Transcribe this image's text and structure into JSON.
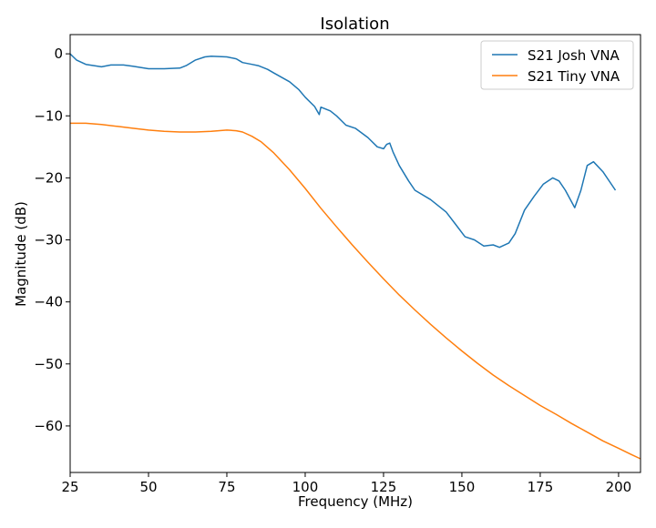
{
  "chart_data": {
    "type": "line",
    "title": "Isolation",
    "xlabel": "Frequency (MHz)",
    "ylabel": "Magnitude (dB)",
    "xlim": [
      25,
      207
    ],
    "ylim": [
      -67.5,
      3.1
    ],
    "xticks": [
      25,
      50,
      75,
      100,
      125,
      150,
      175,
      200
    ],
    "yticks": [
      0,
      -10,
      -20,
      -30,
      -40,
      -50,
      -60
    ],
    "xtick_labels": [
      "25",
      "50",
      "75",
      "100",
      "125",
      "150",
      "175",
      "200"
    ],
    "ytick_labels": [
      "0",
      "−10",
      "−20",
      "−30",
      "−40",
      "−50",
      "−60"
    ],
    "grid": false,
    "legend": {
      "placement": "top-right"
    },
    "series": [
      {
        "name": "S21 Josh VNA",
        "color": "#1f77b4",
        "points": [
          [
            25,
            0
          ],
          [
            27,
            -1
          ],
          [
            30,
            -1.7
          ],
          [
            35,
            -2.1
          ],
          [
            38,
            -1.8
          ],
          [
            42,
            -1.8
          ],
          [
            45,
            -2
          ],
          [
            50,
            -2.4
          ],
          [
            55,
            -2.4
          ],
          [
            60,
            -2.3
          ],
          [
            62,
            -1.9
          ],
          [
            65,
            -1
          ],
          [
            68,
            -0.5
          ],
          [
            70,
            -0.4
          ],
          [
            75,
            -0.5
          ],
          [
            78,
            -0.8
          ],
          [
            80,
            -1.4
          ],
          [
            83,
            -1.7
          ],
          [
            85,
            -1.9
          ],
          [
            88,
            -2.5
          ],
          [
            90,
            -3.1
          ],
          [
            95,
            -4.5
          ],
          [
            98,
            -5.8
          ],
          [
            100,
            -7
          ],
          [
            103,
            -8.5
          ],
          [
            104.5,
            -9.8
          ],
          [
            105,
            -8.6
          ],
          [
            108,
            -9.2
          ],
          [
            110,
            -10
          ],
          [
            113,
            -11.5
          ],
          [
            116,
            -12
          ],
          [
            120,
            -13.5
          ],
          [
            123,
            -15
          ],
          [
            125,
            -15.3
          ],
          [
            126,
            -14.6
          ],
          [
            127,
            -14.4
          ],
          [
            128,
            -15.8
          ],
          [
            130,
            -18
          ],
          [
            133,
            -20.5
          ],
          [
            135,
            -22
          ],
          [
            140,
            -23.5
          ],
          [
            145,
            -25.5
          ],
          [
            148,
            -27.5
          ],
          [
            151,
            -29.5
          ],
          [
            154,
            -30
          ],
          [
            157,
            -31
          ],
          [
            160,
            -30.8
          ],
          [
            162,
            -31.2
          ],
          [
            165,
            -30.5
          ],
          [
            167,
            -29
          ],
          [
            170,
            -25.2
          ],
          [
            173,
            -23
          ],
          [
            176,
            -21
          ],
          [
            179,
            -20
          ],
          [
            181,
            -20.5
          ],
          [
            183,
            -22
          ],
          [
            186,
            -24.8
          ],
          [
            188,
            -22
          ],
          [
            190,
            -18
          ],
          [
            192,
            -17.4
          ],
          [
            195,
            -19
          ],
          [
            199,
            -22
          ]
        ]
      },
      {
        "name": "S21 Tiny VNA",
        "color": "#ff7f0e",
        "points": [
          [
            25,
            -11.2
          ],
          [
            30,
            -11.2
          ],
          [
            35,
            -11.4
          ],
          [
            40,
            -11.7
          ],
          [
            45,
            -12
          ],
          [
            50,
            -12.3
          ],
          [
            55,
            -12.5
          ],
          [
            60,
            -12.6
          ],
          [
            65,
            -12.6
          ],
          [
            70,
            -12.5
          ],
          [
            75,
            -12.3
          ],
          [
            78,
            -12.4
          ],
          [
            80,
            -12.6
          ],
          [
            83,
            -13.3
          ],
          [
            86,
            -14.2
          ],
          [
            90,
            -16
          ],
          [
            95,
            -18.7
          ],
          [
            100,
            -21.7
          ],
          [
            105,
            -24.9
          ],
          [
            110,
            -27.9
          ],
          [
            115,
            -30.8
          ],
          [
            120,
            -33.6
          ],
          [
            125,
            -36.3
          ],
          [
            130,
            -38.9
          ],
          [
            135,
            -41.3
          ],
          [
            140,
            -43.6
          ],
          [
            145,
            -45.8
          ],
          [
            150,
            -47.9
          ],
          [
            155,
            -49.9
          ],
          [
            160,
            -51.8
          ],
          [
            165,
            -53.5
          ],
          [
            170,
            -55.1
          ],
          [
            175,
            -56.7
          ],
          [
            180,
            -58.1
          ],
          [
            185,
            -59.6
          ],
          [
            190,
            -61
          ],
          [
            195,
            -62.4
          ],
          [
            200,
            -63.6
          ],
          [
            204,
            -64.6
          ],
          [
            207,
            -65.3
          ]
        ]
      }
    ]
  }
}
